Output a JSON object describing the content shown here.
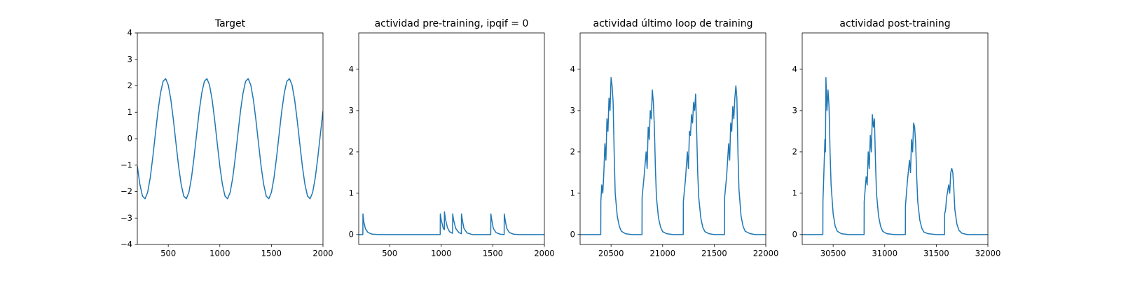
{
  "chart_data": [
    {
      "type": "line",
      "title": "Target",
      "color": "#1f77b4",
      "x": [
        200,
        225,
        250,
        275,
        300,
        325,
        350,
        375,
        400,
        425,
        450,
        475,
        500,
        525,
        550,
        575,
        600,
        625,
        650,
        675,
        700,
        725,
        750,
        775,
        800,
        825,
        850,
        875,
        900,
        925,
        950,
        975,
        1000,
        1025,
        1050,
        1075,
        1100,
        1125,
        1150,
        1175,
        1200,
        1225,
        1250,
        1275,
        1300,
        1325,
        1350,
        1375,
        1400,
        1425,
        1450,
        1475,
        1500,
        1525,
        1550,
        1575,
        1600,
        1625,
        1650,
        1675,
        1700,
        1725,
        1750,
        1775,
        1800,
        1825,
        1850,
        1875,
        1900,
        1925,
        1950,
        1975,
        2000
      ],
      "values": [
        -1.04,
        -1.73,
        -2.17,
        -2.27,
        -2.03,
        -1.48,
        -0.7,
        0.18,
        1.04,
        1.73,
        2.17,
        2.27,
        2.03,
        1.48,
        0.7,
        -0.18,
        -1.04,
        -1.73,
        -2.17,
        -2.27,
        -2.03,
        -1.48,
        -0.7,
        0.18,
        1.04,
        1.73,
        2.17,
        2.27,
        2.03,
        1.48,
        0.7,
        -0.18,
        -1.04,
        -1.73,
        -2.17,
        -2.27,
        -2.03,
        -1.48,
        -0.7,
        0.18,
        1.04,
        1.73,
        2.17,
        2.27,
        2.03,
        1.48,
        0.7,
        -0.18,
        -1.04,
        -1.73,
        -2.17,
        -2.27,
        -2.03,
        -1.48,
        -0.7,
        0.18,
        1.04,
        1.73,
        2.17,
        2.27,
        2.03,
        1.48,
        0.7,
        -0.18,
        -1.04,
        -1.73,
        -2.17,
        -2.27,
        -2.03,
        -1.48,
        -0.7,
        0.18,
        1.04
      ],
      "xlim": [
        200,
        2000
      ],
      "xticks": [
        500,
        1000,
        1500,
        2000
      ],
      "ylim": [
        -4,
        4
      ],
      "yticks": [
        {
          "value": -4,
          "label": "−4"
        },
        {
          "value": -3,
          "label": "−3"
        },
        {
          "value": -2,
          "label": "−2"
        },
        {
          "value": -1,
          "label": "−1"
        },
        0,
        1,
        2,
        3,
        4
      ]
    },
    {
      "type": "line",
      "title": "actividad pre-training, ipqif = 0",
      "color": "#1f77b4",
      "x": [
        200,
        240,
        241,
        250,
        265,
        290,
        330,
        400,
        990,
        991,
        1000,
        1020,
        1030,
        1031,
        1040,
        1060,
        1080,
        1110,
        1111,
        1120,
        1140,
        1170,
        1195,
        1196,
        1205,
        1220,
        1250,
        1300,
        1480,
        1481,
        1490,
        1505,
        1530,
        1570,
        1610,
        1611,
        1620,
        1635,
        1660,
        1700,
        1750,
        2000
      ],
      "values": [
        0,
        0,
        0.5,
        0.3,
        0.14,
        0.05,
        0.01,
        0,
        0,
        0.5,
        0.35,
        0.15,
        0.12,
        0.55,
        0.38,
        0.17,
        0.07,
        0.03,
        0.5,
        0.35,
        0.15,
        0.05,
        0.02,
        0.5,
        0.35,
        0.15,
        0.04,
        0,
        0,
        0.5,
        0.35,
        0.15,
        0.05,
        0.01,
        0,
        0.5,
        0.35,
        0.15,
        0.05,
        0.01,
        0,
        0
      ],
      "xlim": [
        200,
        2000
      ],
      "xticks": [
        500,
        1000,
        1500,
        2000
      ],
      "ylim": [
        -0.24,
        4.88
      ],
      "yticks": [
        0,
        1,
        2,
        3,
        4
      ]
    },
    {
      "type": "line",
      "title": "actividad último loop de training",
      "color": "#1f77b4",
      "x": [
        20200,
        20400,
        20401,
        20410,
        20420,
        20430,
        20440,
        20450,
        20460,
        20470,
        20480,
        20490,
        20500,
        20510,
        20520,
        20530,
        20540,
        20560,
        20580,
        20600,
        20640,
        20700,
        20800,
        20801,
        20820,
        20840,
        20850,
        20860,
        20870,
        20880,
        20890,
        20900,
        20910,
        20920,
        20930,
        20940,
        20960,
        20980,
        21000,
        21040,
        21100,
        21200,
        21201,
        21220,
        21240,
        21250,
        21260,
        21270,
        21280,
        21290,
        21300,
        21310,
        21320,
        21330,
        21340,
        21350,
        21370,
        21390,
        21410,
        21450,
        21500,
        21600,
        21601,
        21620,
        21640,
        21650,
        21660,
        21670,
        21680,
        21690,
        21700,
        21710,
        21720,
        21730,
        21740,
        21760,
        21780,
        21800,
        21850,
        21900,
        22000
      ],
      "values": [
        0,
        0,
        0.8,
        1.2,
        1.0,
        1.5,
        2.2,
        1.8,
        2.8,
        2.5,
        3.3,
        3.0,
        3.8,
        3.6,
        3.2,
        2.0,
        1.0,
        0.45,
        0.2,
        0.08,
        0.02,
        0,
        0,
        0.9,
        1.4,
        2.0,
        1.6,
        2.6,
        2.3,
        3.0,
        2.8,
        3.5,
        3.2,
        2.6,
        1.6,
        0.9,
        0.4,
        0.18,
        0.07,
        0.02,
        0,
        0,
        0.8,
        1.3,
        2.0,
        1.6,
        2.5,
        2.4,
        2.9,
        2.7,
        3.2,
        3.0,
        3.4,
        2.5,
        1.5,
        0.9,
        0.4,
        0.17,
        0.07,
        0.02,
        0,
        0,
        0.9,
        1.4,
        2.2,
        1.8,
        2.7,
        2.5,
        3.1,
        2.8,
        3.3,
        3.6,
        3.3,
        2.0,
        1.1,
        0.45,
        0.2,
        0.08,
        0.02,
        0,
        0
      ],
      "xlim": [
        20200,
        22000
      ],
      "xticks": [
        20500,
        21000,
        21500,
        22000
      ],
      "ylim": [
        -0.24,
        4.88
      ],
      "yticks": [
        0,
        1,
        2,
        3,
        4
      ]
    },
    {
      "type": "line",
      "title": "actividad post-training",
      "color": "#1f77b4",
      "x": [
        30200,
        30400,
        30401,
        30410,
        30420,
        30425,
        30430,
        30440,
        30450,
        30460,
        30470,
        30480,
        30500,
        30520,
        30540,
        30580,
        30650,
        30800,
        30801,
        30820,
        30830,
        30840,
        30850,
        30860,
        30870,
        30880,
        30890,
        30900,
        30910,
        30920,
        30940,
        30960,
        30980,
        31020,
        31100,
        31200,
        31201,
        31220,
        31240,
        31250,
        31260,
        31270,
        31280,
        31290,
        31300,
        31310,
        31320,
        31340,
        31360,
        31380,
        31420,
        31500,
        31580,
        31581,
        31590,
        31600,
        31620,
        31630,
        31640,
        31650,
        31660,
        31670,
        31680,
        31700,
        31720,
        31750,
        31800,
        32000
      ],
      "values": [
        0,
        0,
        0.8,
        1.5,
        2.3,
        2.0,
        3.8,
        3.0,
        3.5,
        3.1,
        2.0,
        1.2,
        0.5,
        0.2,
        0.08,
        0.02,
        0,
        0,
        0.8,
        1.4,
        1.2,
        2.0,
        1.6,
        2.4,
        2.0,
        2.9,
        2.6,
        2.8,
        1.8,
        1.0,
        0.45,
        0.2,
        0.08,
        0.02,
        0,
        0,
        0.7,
        1.3,
        1.8,
        1.5,
        2.3,
        2.0,
        2.7,
        2.6,
        2.2,
        1.4,
        0.8,
        0.35,
        0.15,
        0.06,
        0.02,
        0,
        0,
        0.5,
        0.6,
        0.9,
        1.2,
        1.0,
        1.5,
        1.6,
        1.5,
        1.1,
        0.6,
        0.25,
        0.1,
        0.03,
        0,
        0
      ],
      "xlim": [
        30200,
        32000
      ],
      "xticks": [
        30500,
        31000,
        31500,
        32000
      ],
      "ylim": [
        -0.24,
        4.88
      ],
      "yticks": [
        0,
        1,
        2,
        3,
        4
      ]
    }
  ]
}
